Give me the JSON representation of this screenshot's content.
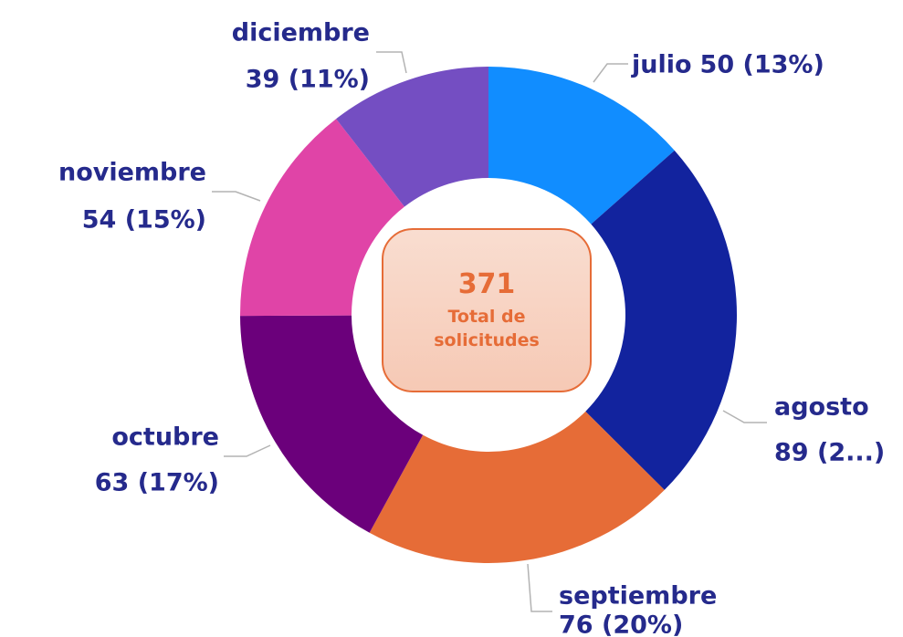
{
  "chart_data": {
    "type": "donut",
    "categories": [
      "julio",
      "agosto",
      "septiembre",
      "octubre",
      "noviembre",
      "diciembre"
    ],
    "values": [
      50,
      89,
      76,
      63,
      54,
      39
    ],
    "value_labels": [
      "50 (13%)",
      "89 (2...)",
      "76 (20%)",
      "63 (17%)",
      "54 (15%)",
      "39 (11%)"
    ],
    "colors": [
      "#118DFF",
      "#12239E",
      "#E66C37",
      "#6B007B",
      "#E044A7",
      "#744EC2"
    ],
    "total": 371,
    "total_label": "Total de solicitudes"
  }
}
